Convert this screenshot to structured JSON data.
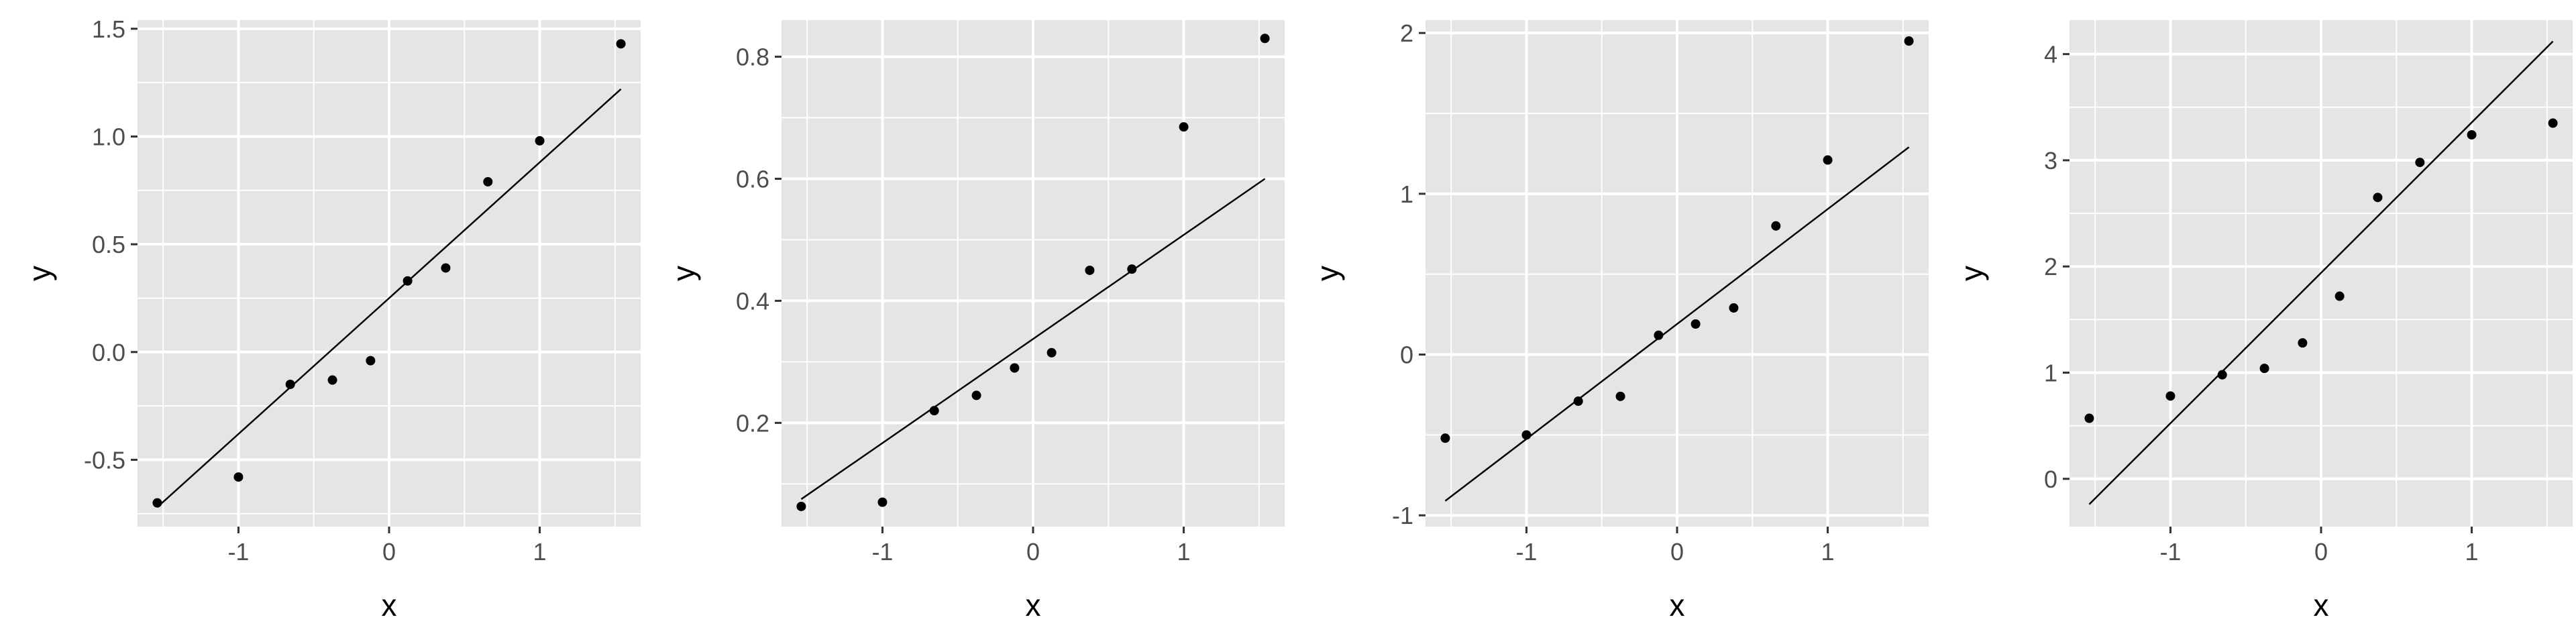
{
  "chart_data": [
    {
      "type": "scatter",
      "title": "",
      "xlabel": "x",
      "ylabel": "y",
      "grid": true,
      "background": "#e5e5e5",
      "gridline_color": "#ffffff",
      "point_color": "#000000",
      "line_color": "#000000",
      "xlim": [
        -1.67,
        1.67
      ],
      "ylim": [
        -0.81,
        1.54
      ],
      "x_ticks": [
        -1,
        0,
        1
      ],
      "x_tick_labels": [
        "-1",
        "0",
        "1"
      ],
      "y_ticks": [
        -0.5,
        0.0,
        0.5,
        1.0,
        1.5
      ],
      "y_tick_labels": [
        "-0.5",
        "0.0",
        "0.5",
        "1.0",
        "1.5"
      ],
      "x": [
        -1.539,
        -1.0,
        -0.656,
        -0.376,
        -0.123,
        0.123,
        0.376,
        0.656,
        1.0,
        1.539
      ],
      "y": [
        -0.7,
        -0.58,
        -0.15,
        -0.13,
        -0.04,
        0.33,
        0.39,
        0.79,
        0.98,
        1.43
      ],
      "reference_line": {
        "x": [
          -1.539,
          1.539
        ],
        "y": [
          -0.72,
          1.22
        ]
      }
    },
    {
      "type": "scatter",
      "title": "",
      "xlabel": "x",
      "ylabel": "y",
      "grid": true,
      "background": "#e5e5e5",
      "gridline_color": "#ffffff",
      "point_color": "#000000",
      "line_color": "#000000",
      "xlim": [
        -1.67,
        1.67
      ],
      "ylim": [
        0.03,
        0.86
      ],
      "x_ticks": [
        -1,
        0,
        1
      ],
      "x_tick_labels": [
        "-1",
        "0",
        "1"
      ],
      "y_ticks": [
        0.2,
        0.4,
        0.6,
        0.8
      ],
      "y_tick_labels": [
        "0.2",
        "0.4",
        "0.6",
        "0.8"
      ],
      "x": [
        -1.539,
        -1.0,
        -0.656,
        -0.376,
        -0.123,
        0.123,
        0.376,
        0.656,
        1.0,
        1.539
      ],
      "y": [
        0.063,
        0.07,
        0.22,
        0.245,
        0.29,
        0.315,
        0.45,
        0.452,
        0.685,
        0.83
      ],
      "reference_line": {
        "x": [
          -1.539,
          1.539
        ],
        "y": [
          0.075,
          0.6
        ]
      }
    },
    {
      "type": "scatter",
      "title": "",
      "xlabel": "x",
      "ylabel": "y",
      "grid": true,
      "background": "#e5e5e5",
      "gridline_color": "#ffffff",
      "point_color": "#000000",
      "line_color": "#000000",
      "xlim": [
        -1.67,
        1.67
      ],
      "ylim": [
        -1.07,
        2.08
      ],
      "x_ticks": [
        -1,
        0,
        1
      ],
      "x_tick_labels": [
        "-1",
        "0",
        "1"
      ],
      "y_ticks": [
        -1,
        0,
        1,
        2
      ],
      "y_tick_labels": [
        "-1",
        "0",
        "1",
        "2"
      ],
      "x": [
        -1.539,
        -1.0,
        -0.656,
        -0.376,
        -0.123,
        0.123,
        0.376,
        0.656,
        1.0,
        1.539
      ],
      "y": [
        -0.52,
        -0.5,
        -0.29,
        -0.26,
        0.12,
        0.19,
        0.29,
        0.8,
        1.21,
        1.95
      ],
      "reference_line": {
        "x": [
          -1.539,
          1.539
        ],
        "y": [
          -0.91,
          1.29
        ]
      }
    },
    {
      "type": "scatter",
      "title": "",
      "xlabel": "x",
      "ylabel": "y",
      "grid": true,
      "background": "#e5e5e5",
      "gridline_color": "#ffffff",
      "point_color": "#000000",
      "line_color": "#000000",
      "xlim": [
        -1.67,
        1.67
      ],
      "ylim": [
        -0.45,
        4.32
      ],
      "x_ticks": [
        -1,
        0,
        1
      ],
      "x_tick_labels": [
        "-1",
        "0",
        "1"
      ],
      "y_ticks": [
        0,
        1,
        2,
        3,
        4
      ],
      "y_tick_labels": [
        "0",
        "1",
        "2",
        "3",
        "4"
      ],
      "x": [
        -1.539,
        -1.0,
        -0.656,
        -0.376,
        -0.123,
        0.123,
        0.376,
        0.656,
        1.0,
        1.539
      ],
      "y": [
        0.57,
        0.78,
        0.98,
        1.04,
        1.28,
        1.72,
        2.65,
        2.98,
        3.24,
        3.35
      ],
      "reference_line": {
        "x": [
          -1.539,
          1.539
        ],
        "y": [
          -0.24,
          4.12
        ]
      }
    }
  ]
}
